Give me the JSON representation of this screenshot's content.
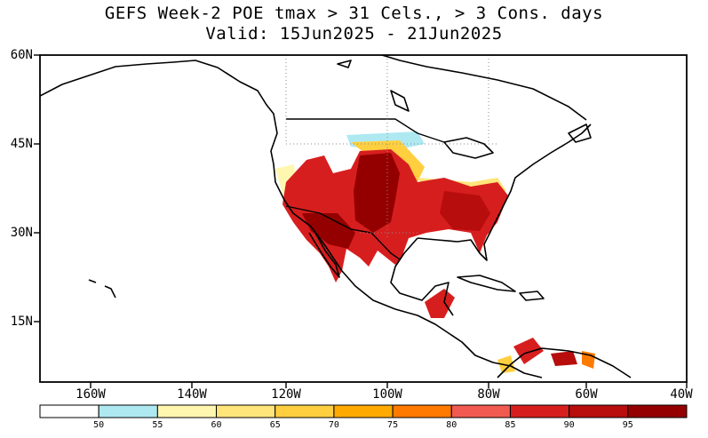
{
  "title": {
    "line1": "GEFS Week-2 POE tmax > 31 Cels., > 3 Cons. days",
    "line2": "Valid: 15Jun2025 - 21Jun2025"
  },
  "map": {
    "lat_labels": [
      "60N",
      "45N",
      "30N",
      "15N"
    ],
    "lon_labels": [
      "160W",
      "140W",
      "120W",
      "100W",
      "80W",
      "60W",
      "40W"
    ]
  },
  "colorbar": {
    "colors": [
      "#ffffff",
      "#aee9f2",
      "#fff7b0",
      "#ffe57a",
      "#ffcf40",
      "#ffaa00",
      "#ff7a00",
      "#f05a50",
      "#d71e1e",
      "#b80d0d",
      "#940000"
    ],
    "labels": [
      "50",
      "55",
      "60",
      "65",
      "70",
      "75",
      "80",
      "85",
      "90",
      "95"
    ]
  }
}
